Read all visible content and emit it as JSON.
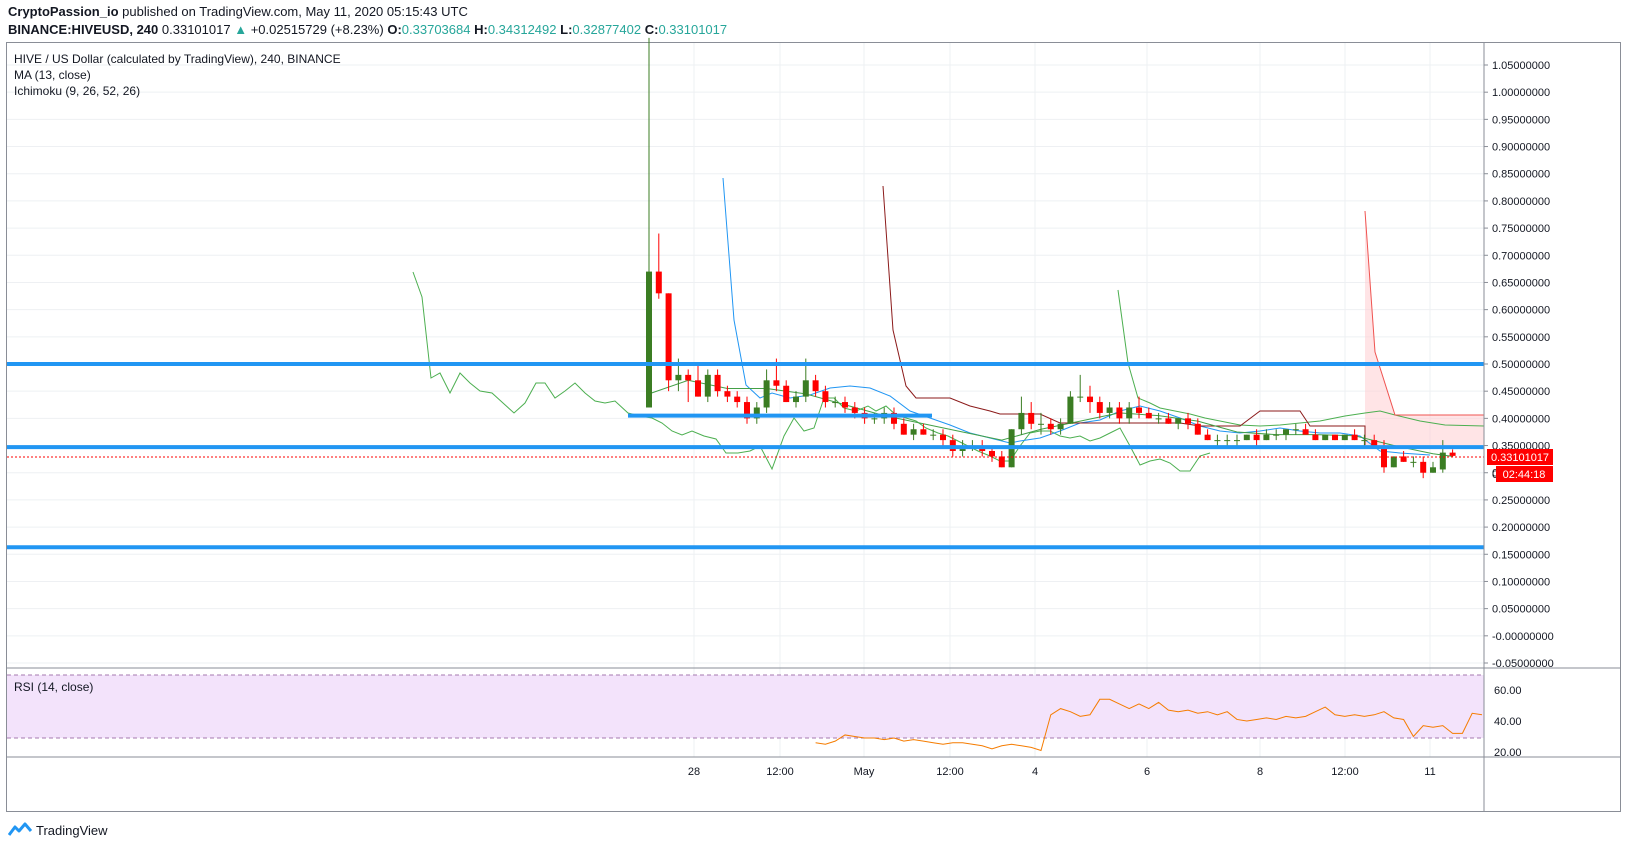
{
  "header": {
    "publisher": "CryptoPassion_io",
    "published_text": "published on TradingView.com, May 11, 2020 05:15:43 UTC",
    "symbol": "BINANCE:HIVEUSD, 240",
    "last": "0.33101017",
    "change_arrow": "▲",
    "change": "+0.02515729 (+8.23%)",
    "o_label": "O:",
    "o_value": "0.33703684",
    "h_label": "H:",
    "h_value": "0.34312492",
    "l_label": "L:",
    "l_value": "0.32877402",
    "c_label": "C:",
    "c_value": "0.33101017"
  },
  "legend": {
    "title": "HIVE / US Dollar (calculated by TradingView), 240, BINANCE",
    "ma": "MA (13, close)",
    "ichimoku": "Ichimoku (9, 26, 52, 26)",
    "rsi": "RSI (14, close)"
  },
  "price_axis": {
    "labels": [
      "1.05000000",
      "1.00000000",
      "0.95000000",
      "0.90000000",
      "0.85000000",
      "0.80000000",
      "0.75000000",
      "0.70000000",
      "0.65000000",
      "0.60000000",
      "0.55000000",
      "0.50000000",
      "0.45000000",
      "0.40000000",
      "0.35000000",
      "0.30000000",
      "0.25000000",
      "0.20000000",
      "0.15000000",
      "0.10000000",
      "0.05000000",
      "-0.00000000",
      "-0.05000000"
    ],
    "current_price_tag": "0.33101017",
    "countdown_tag": "02:44:18",
    "tag_partial_label": "0."
  },
  "rsi_axis": {
    "labels": [
      "60.00",
      "40.00",
      "20.00"
    ]
  },
  "time_axis": {
    "labels": [
      "28",
      "12:00",
      "May",
      "12:00",
      "4",
      "6",
      "8",
      "12:00",
      "11"
    ]
  },
  "footer": {
    "brand": "TradingView"
  },
  "colors": {
    "up": "#3b7d23",
    "down": "#ff0000",
    "support_lines": "#2196f3",
    "tenkan": "#2196f3",
    "kijun": "#8b1a1a",
    "chikou": "#4caf50",
    "ma": "#43a047",
    "rsi_line": "#f57c00",
    "rsi_band": "#f3e3fb",
    "current_price": "#ff0000"
  },
  "chart_data": {
    "type": "candlestick",
    "symbol": "HIVE / US Dollar",
    "timeframe": "240",
    "exchange": "BINANCE",
    "y_range": [
      -0.05,
      1.1
    ],
    "y_axis_label": "",
    "x_tick_labels": [
      "28",
      "12:00",
      "May",
      "12:00",
      "4",
      "6",
      "8",
      "12:00",
      "11"
    ],
    "horizontal_support_resistance_levels": [
      0.5,
      0.405,
      0.347,
      0.163
    ],
    "current_price": 0.33101017,
    "candles_ohlc": [
      [
        0.42,
        1.1,
        0.42,
        0.67
      ],
      [
        0.67,
        0.74,
        0.62,
        0.63
      ],
      [
        0.63,
        0.63,
        0.45,
        0.47
      ],
      [
        0.47,
        0.51,
        0.45,
        0.48
      ],
      [
        0.48,
        0.49,
        0.43,
        0.47
      ],
      [
        0.47,
        0.5,
        0.44,
        0.44
      ],
      [
        0.44,
        0.49,
        0.43,
        0.48
      ],
      [
        0.48,
        0.49,
        0.44,
        0.45
      ],
      [
        0.45,
        0.46,
        0.43,
        0.44
      ],
      [
        0.44,
        0.45,
        0.42,
        0.43
      ],
      [
        0.43,
        0.44,
        0.39,
        0.4
      ],
      [
        0.4,
        0.43,
        0.39,
        0.42
      ],
      [
        0.42,
        0.49,
        0.41,
        0.47
      ],
      [
        0.47,
        0.51,
        0.45,
        0.46
      ],
      [
        0.46,
        0.47,
        0.43,
        0.43
      ],
      [
        0.43,
        0.45,
        0.42,
        0.44
      ],
      [
        0.44,
        0.51,
        0.43,
        0.47
      ],
      [
        0.47,
        0.48,
        0.44,
        0.45
      ],
      [
        0.45,
        0.46,
        0.42,
        0.43
      ],
      [
        0.43,
        0.44,
        0.42,
        0.43
      ],
      [
        0.43,
        0.44,
        0.41,
        0.42
      ],
      [
        0.42,
        0.43,
        0.4,
        0.41
      ],
      [
        0.41,
        0.42,
        0.39,
        0.4
      ],
      [
        0.4,
        0.41,
        0.39,
        0.4
      ],
      [
        0.4,
        0.42,
        0.39,
        0.41
      ],
      [
        0.41,
        0.42,
        0.38,
        0.39
      ],
      [
        0.39,
        0.4,
        0.37,
        0.37
      ],
      [
        0.37,
        0.39,
        0.36,
        0.38
      ],
      [
        0.38,
        0.39,
        0.37,
        0.37
      ],
      [
        0.37,
        0.38,
        0.36,
        0.37
      ],
      [
        0.37,
        0.38,
        0.35,
        0.36
      ],
      [
        0.36,
        0.37,
        0.33,
        0.34
      ],
      [
        0.34,
        0.36,
        0.33,
        0.35
      ],
      [
        0.35,
        0.36,
        0.34,
        0.35
      ],
      [
        0.35,
        0.36,
        0.33,
        0.34
      ],
      [
        0.34,
        0.35,
        0.32,
        0.33
      ],
      [
        0.33,
        0.34,
        0.31,
        0.31
      ],
      [
        0.31,
        0.38,
        0.31,
        0.38
      ],
      [
        0.38,
        0.44,
        0.37,
        0.41
      ],
      [
        0.41,
        0.43,
        0.38,
        0.39
      ],
      [
        0.39,
        0.41,
        0.37,
        0.39
      ],
      [
        0.39,
        0.4,
        0.37,
        0.38
      ],
      [
        0.38,
        0.4,
        0.37,
        0.39
      ],
      [
        0.39,
        0.45,
        0.39,
        0.44
      ],
      [
        0.44,
        0.48,
        0.43,
        0.44
      ],
      [
        0.44,
        0.46,
        0.41,
        0.43
      ],
      [
        0.43,
        0.44,
        0.4,
        0.41
      ],
      [
        0.41,
        0.43,
        0.4,
        0.42
      ],
      [
        0.42,
        0.43,
        0.39,
        0.4
      ],
      [
        0.4,
        0.43,
        0.39,
        0.42
      ],
      [
        0.42,
        0.44,
        0.4,
        0.41
      ],
      [
        0.41,
        0.42,
        0.4,
        0.4
      ],
      [
        0.4,
        0.41,
        0.39,
        0.4
      ],
      [
        0.4,
        0.41,
        0.39,
        0.39
      ],
      [
        0.39,
        0.4,
        0.38,
        0.4
      ],
      [
        0.4,
        0.41,
        0.38,
        0.39
      ],
      [
        0.39,
        0.4,
        0.37,
        0.37
      ],
      [
        0.37,
        0.38,
        0.36,
        0.36
      ],
      [
        0.36,
        0.37,
        0.35,
        0.36
      ],
      [
        0.36,
        0.37,
        0.35,
        0.36
      ],
      [
        0.36,
        0.37,
        0.35,
        0.36
      ],
      [
        0.36,
        0.37,
        0.36,
        0.37
      ],
      [
        0.37,
        0.38,
        0.35,
        0.36
      ],
      [
        0.36,
        0.38,
        0.36,
        0.37
      ],
      [
        0.37,
        0.38,
        0.36,
        0.37
      ],
      [
        0.37,
        0.38,
        0.36,
        0.38
      ],
      [
        0.38,
        0.39,
        0.37,
        0.38
      ],
      [
        0.38,
        0.39,
        0.37,
        0.37
      ],
      [
        0.37,
        0.38,
        0.36,
        0.36
      ],
      [
        0.36,
        0.37,
        0.36,
        0.37
      ],
      [
        0.37,
        0.37,
        0.36,
        0.36
      ],
      [
        0.36,
        0.37,
        0.36,
        0.37
      ],
      [
        0.37,
        0.38,
        0.36,
        0.36
      ],
      [
        0.36,
        0.37,
        0.35,
        0.36
      ],
      [
        0.36,
        0.37,
        0.35,
        0.35
      ],
      [
        0.35,
        0.36,
        0.3,
        0.31
      ],
      [
        0.31,
        0.33,
        0.31,
        0.33
      ],
      [
        0.33,
        0.34,
        0.32,
        0.32
      ],
      [
        0.32,
        0.33,
        0.31,
        0.32
      ],
      [
        0.32,
        0.33,
        0.29,
        0.3
      ],
      [
        0.3,
        0.32,
        0.3,
        0.31
      ],
      [
        0.306,
        0.36,
        0.3,
        0.337
      ],
      [
        0.337,
        0.343,
        0.329,
        0.331
      ]
    ],
    "ma_13": [
      {
        "x": 0,
        "y": 0.445
      },
      {
        "x": 4,
        "y": 0.47
      },
      {
        "x": 8,
        "y": 0.455
      },
      {
        "x": 12,
        "y": 0.455
      },
      {
        "x": 16,
        "y": 0.445
      },
      {
        "x": 20,
        "y": 0.425
      },
      {
        "x": 24,
        "y": 0.405
      },
      {
        "x": 28,
        "y": 0.39
      },
      {
        "x": 32,
        "y": 0.375
      },
      {
        "x": 36,
        "y": 0.36
      },
      {
        "x": 40,
        "y": 0.38
      },
      {
        "x": 44,
        "y": 0.395
      },
      {
        "x": 48,
        "y": 0.41
      },
      {
        "x": 52,
        "y": 0.405
      },
      {
        "x": 56,
        "y": 0.395
      },
      {
        "x": 60,
        "y": 0.375
      },
      {
        "x": 64,
        "y": 0.37
      },
      {
        "x": 68,
        "y": 0.37
      },
      {
        "x": 72,
        "y": 0.368
      },
      {
        "x": 76,
        "y": 0.35
      },
      {
        "x": 80,
        "y": 0.335
      },
      {
        "x": 82,
        "y": 0.33
      }
    ],
    "rsi_14": [
      {
        "x": 17,
        "y": 26
      },
      {
        "x": 18,
        "y": 25
      },
      {
        "x": 19,
        "y": 27
      },
      {
        "x": 20,
        "y": 31
      },
      {
        "x": 21,
        "y": 30
      },
      {
        "x": 22,
        "y": 29
      },
      {
        "x": 23,
        "y": 29
      },
      {
        "x": 24,
        "y": 28
      },
      {
        "x": 25,
        "y": 29
      },
      {
        "x": 26,
        "y": 27
      },
      {
        "x": 27,
        "y": 28
      },
      {
        "x": 28,
        "y": 27
      },
      {
        "x": 29,
        "y": 26
      },
      {
        "x": 30,
        "y": 25
      },
      {
        "x": 31,
        "y": 26
      },
      {
        "x": 32,
        "y": 26
      },
      {
        "x": 33,
        "y": 25
      },
      {
        "x": 34,
        "y": 24
      },
      {
        "x": 35,
        "y": 22
      },
      {
        "x": 36,
        "y": 24
      },
      {
        "x": 37,
        "y": 25
      },
      {
        "x": 38,
        "y": 24
      },
      {
        "x": 39,
        "y": 23
      },
      {
        "x": 40,
        "y": 21
      },
      {
        "x": 41,
        "y": 44
      },
      {
        "x": 42,
        "y": 48
      },
      {
        "x": 43,
        "y": 46
      },
      {
        "x": 44,
        "y": 43
      },
      {
        "x": 45,
        "y": 44
      },
      {
        "x": 46,
        "y": 54
      },
      {
        "x": 47,
        "y": 54
      },
      {
        "x": 48,
        "y": 51
      },
      {
        "x": 49,
        "y": 48
      },
      {
        "x": 50,
        "y": 51
      },
      {
        "x": 51,
        "y": 48
      },
      {
        "x": 52,
        "y": 52
      },
      {
        "x": 53,
        "y": 47
      },
      {
        "x": 54,
        "y": 46
      },
      {
        "x": 55,
        "y": 47
      },
      {
        "x": 56,
        "y": 45
      },
      {
        "x": 57,
        "y": 46
      },
      {
        "x": 58,
        "y": 44
      },
      {
        "x": 59,
        "y": 46
      },
      {
        "x": 60,
        "y": 41
      },
      {
        "x": 61,
        "y": 40
      },
      {
        "x": 62,
        "y": 41
      },
      {
        "x": 63,
        "y": 42
      },
      {
        "x": 64,
        "y": 41
      },
      {
        "x": 65,
        "y": 43
      },
      {
        "x": 66,
        "y": 42
      },
      {
        "x": 67,
        "y": 43
      },
      {
        "x": 68,
        "y": 46
      },
      {
        "x": 69,
        "y": 49
      },
      {
        "x": 70,
        "y": 44
      },
      {
        "x": 71,
        "y": 43
      },
      {
        "x": 72,
        "y": 44
      },
      {
        "x": 73,
        "y": 43
      },
      {
        "x": 74,
        "y": 44
      },
      {
        "x": 75,
        "y": 46
      },
      {
        "x": 76,
        "y": 42
      },
      {
        "x": 77,
        "y": 41
      },
      {
        "x": 78,
        "y": 30
      },
      {
        "x": 79,
        "y": 37
      },
      {
        "x": 80,
        "y": 36
      },
      {
        "x": 81,
        "y": 37
      },
      {
        "x": 82,
        "y": 32
      },
      {
        "x": 83,
        "y": 32
      },
      {
        "x": 84,
        "y": 45
      },
      {
        "x": 85,
        "y": 44
      }
    ]
  }
}
